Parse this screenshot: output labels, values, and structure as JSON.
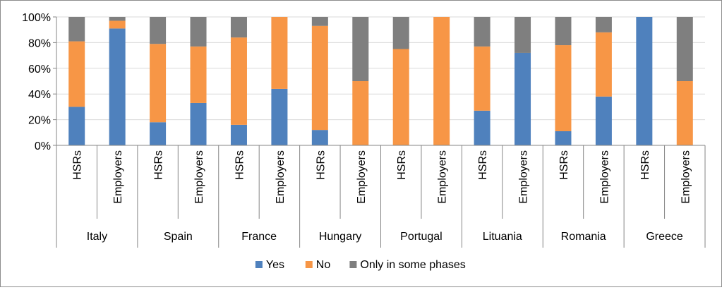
{
  "chart_data": {
    "type": "bar",
    "stacked": true,
    "percent_stacked": true,
    "ylim": [
      0,
      100
    ],
    "yticks": [
      "0%",
      "20%",
      "40%",
      "60%",
      "80%",
      "100%"
    ],
    "grid": true,
    "legend_position": "bottom",
    "groups": [
      "Italy",
      "Spain",
      "France",
      "Hungary",
      "Portugal",
      "Lituania",
      "Romania",
      "Greece"
    ],
    "subcategories": [
      "HSRs",
      "Employers"
    ],
    "series": [
      {
        "name": "Yes",
        "color": "#4f81bd",
        "values": [
          30,
          91,
          18,
          33,
          16,
          44,
          12,
          0,
          0,
          0,
          27,
          72,
          11,
          38,
          100,
          0
        ]
      },
      {
        "name": "No",
        "color": "#f79646",
        "values": [
          51,
          6,
          61,
          44,
          68,
          56,
          81,
          50,
          75,
          100,
          50,
          0,
          67,
          50,
          0,
          50
        ]
      },
      {
        "name": "Only in some phases",
        "color": "#7f7f7f",
        "values": [
          19,
          3,
          21,
          23,
          16,
          0,
          7,
          50,
          25,
          0,
          23,
          28,
          22,
          12,
          0,
          50
        ]
      }
    ]
  }
}
